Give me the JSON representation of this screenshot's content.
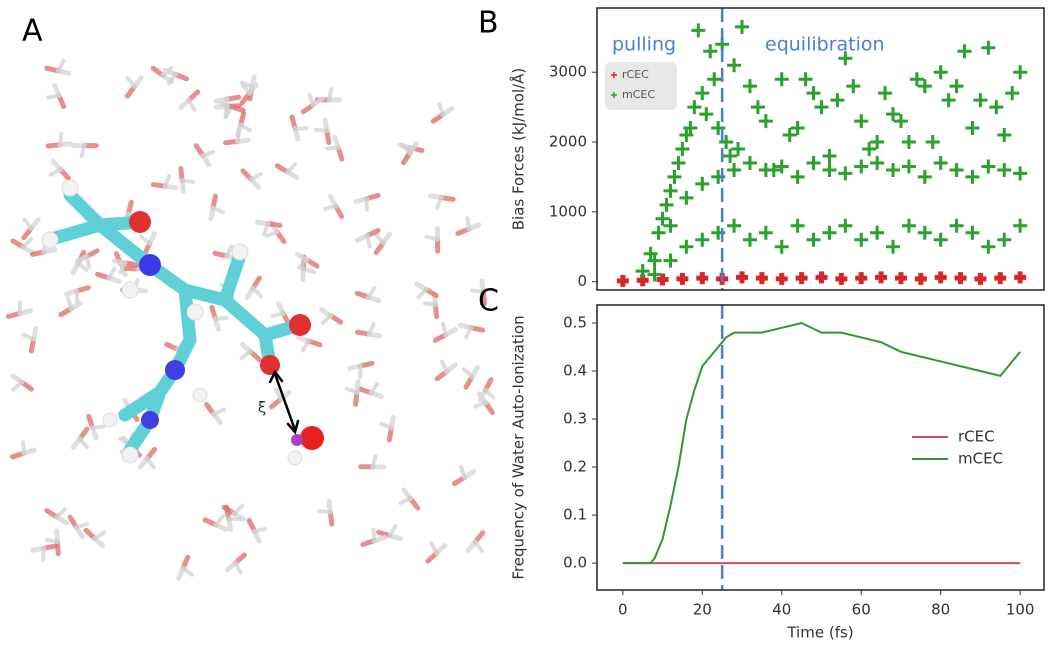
{
  "panel_labels": [
    "A",
    "B",
    "C"
  ],
  "molecule": {
    "label": "ξ"
  },
  "chart_data": [
    {
      "type": "scatter",
      "ylabel": "Bias Forces (kJ/mol/Å)",
      "xlim": [
        -6.5,
        106
      ],
      "ylim": [
        -120,
        3920
      ],
      "yticks": [
        0,
        1000,
        2000,
        3000
      ],
      "vline": 25,
      "vline_color": "#4a7fd4",
      "annotations": [
        "pulling",
        "equilibration"
      ],
      "legend": "upper left",
      "series": [
        {
          "name": "rCEC",
          "color": "#d62728",
          "x": [
            0,
            5,
            10,
            15,
            20,
            25,
            30,
            35,
            40,
            45,
            50,
            55,
            60,
            65,
            70,
            75,
            80,
            85,
            90,
            95,
            100
          ],
          "values": [
            10,
            20,
            30,
            40,
            50,
            40,
            60,
            50,
            40,
            50,
            60,
            40,
            50,
            60,
            50,
            40,
            60,
            50,
            40,
            50,
            60
          ]
        },
        {
          "name": "mCEC",
          "color": "#2ca02c",
          "x": [
            5,
            7,
            9,
            10,
            11,
            12,
            13,
            14,
            15,
            16,
            17,
            18,
            19,
            20,
            21,
            22,
            23,
            24,
            25,
            26,
            27,
            28,
            29,
            30,
            32,
            34,
            36,
            38,
            40,
            42,
            44,
            46,
            48,
            50,
            52,
            54,
            56,
            58,
            60,
            62,
            64,
            66,
            68,
            70,
            72,
            74,
            76,
            78,
            80,
            82,
            84,
            86,
            88,
            90,
            92,
            94,
            96,
            98,
            100,
            8,
            12,
            16,
            20,
            24,
            28,
            32,
            36,
            40,
            44,
            48,
            52,
            56,
            60,
            64,
            68,
            72,
            76,
            80,
            84,
            88,
            92,
            96,
            100,
            8,
            12,
            16,
            20,
            24,
            28,
            32,
            36,
            40,
            44,
            48,
            52,
            56,
            60,
            64,
            68,
            72,
            76,
            80,
            84,
            88,
            92,
            96,
            100
          ],
          "values": [
            150,
            400,
            700,
            900,
            1100,
            1300,
            1500,
            1700,
            1900,
            2100,
            2200,
            2500,
            3600,
            2700,
            2400,
            3300,
            2900,
            2200,
            3400,
            2000,
            1800,
            3100,
            1900,
            3650,
            2800,
            2500,
            2300,
            1600,
            2900,
            2100,
            2200,
            2900,
            2700,
            2500,
            1800,
            2600,
            3200,
            2800,
            2300,
            1900,
            2000,
            2700,
            2400,
            2300,
            2000,
            2900,
            2800,
            2000,
            3000,
            2600,
            2800,
            3300,
            2200,
            2600,
            3350,
            2500,
            2100,
            2700,
            3000,
            300,
            800,
            1200,
            1400,
            1500,
            1600,
            1700,
            1600,
            1650,
            1500,
            1700,
            1600,
            1550,
            1650,
            1700,
            1600,
            1650,
            1500,
            1700,
            1600,
            1500,
            1650,
            1600,
            1550,
            100,
            300,
            500,
            600,
            700,
            800,
            600,
            700,
            500,
            800,
            600,
            700,
            800,
            600,
            700,
            500,
            800,
            700,
            600,
            800,
            700,
            500,
            600,
            800
          ]
        }
      ]
    },
    {
      "type": "line",
      "xlabel": "Time (fs)",
      "ylabel": "Frequency of Water Auto-Ionization",
      "xlim": [
        -6.5,
        106
      ],
      "ylim": [
        -0.056,
        0.5375
      ],
      "xticks": [
        0,
        20,
        40,
        60,
        80,
        100
      ],
      "yticks": [
        {
          "value": 0,
          "label": "0.0"
        },
        0.1,
        0.2,
        0.3,
        0.4,
        0.5
      ],
      "vline": 25,
      "vline_color": "#4a7fd4",
      "legend": "center right",
      "x": [
        0,
        2,
        4,
        6,
        7,
        8,
        10,
        12,
        14,
        16,
        18,
        20,
        22,
        24,
        26,
        28,
        30,
        35,
        40,
        45,
        50,
        55,
        60,
        65,
        70,
        75,
        80,
        85,
        90,
        95,
        98,
        100
      ],
      "series": [
        {
          "name": "rCEC",
          "color": "#c8505a",
          "values": [
            0,
            0,
            0,
            0,
            0,
            0,
            0,
            0,
            0,
            0,
            0,
            0,
            0,
            0,
            0,
            0,
            0,
            0,
            0,
            0,
            0,
            0,
            0,
            0,
            0,
            0,
            0,
            0,
            0,
            0,
            0,
            0
          ]
        },
        {
          "name": "mCEC",
          "color": "#2e9a2e",
          "values": [
            0,
            0,
            0,
            0,
            0,
            0.01,
            0.05,
            0.12,
            0.2,
            0.3,
            0.36,
            0.41,
            0.43,
            0.45,
            0.47,
            0.48,
            0.48,
            0.48,
            0.49,
            0.5,
            0.48,
            0.48,
            0.47,
            0.46,
            0.44,
            0.43,
            0.42,
            0.41,
            0.4,
            0.39,
            0.42,
            0.44
          ]
        }
      ]
    }
  ]
}
